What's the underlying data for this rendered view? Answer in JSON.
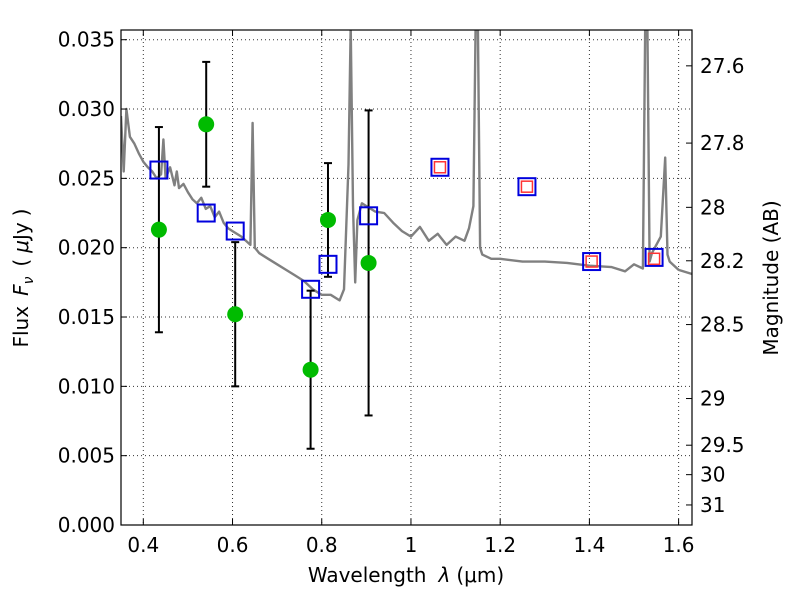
{
  "chart_data": {
    "type": "scatter",
    "title": "",
    "xlabel_text": "Wavelength",
    "xlabel_symbol": "λ",
    "xlabel_unit": "(μm)",
    "ylabel_text": "Flux",
    "ylabel_symbol": "F",
    "ylabel_subscript": "ν",
    "ylabel_open": "(",
    "ylabel_unit_symbol": "μ",
    "ylabel_unit": "Jy",
    "ylabel_close": ")",
    "y2label": "Magnitude (AB)",
    "xlim": [
      0.35,
      1.63
    ],
    "ylim": [
      0.0,
      0.0357
    ],
    "xticks": [
      0.4,
      0.6,
      0.8,
      1.0,
      1.2,
      1.4,
      1.6
    ],
    "xtick_labels": [
      "0.4",
      "0.6",
      "0.8",
      "1",
      "1.2",
      "1.4",
      "1.6"
    ],
    "yticks": [
      0.0,
      0.005,
      0.01,
      0.015,
      0.02,
      0.025,
      0.03,
      0.035
    ],
    "ytick_labels": [
      "0.000",
      "0.005",
      "0.010",
      "0.015",
      "0.020",
      "0.025",
      "0.030",
      "0.035"
    ],
    "y2ticks": [
      27.6,
      27.8,
      28,
      28.2,
      28.5,
      29,
      29.5,
      30,
      31
    ],
    "y2tick_labels": [
      "27.6",
      "27.8",
      "28",
      "28.2",
      "28.5",
      "29",
      "29.5",
      "30",
      "31"
    ],
    "grid": true,
    "colors": {
      "observed": "#00bb00",
      "model": "#0000dd",
      "predicted": "#ff3333",
      "spectrum": "#808080",
      "errorbar": "#000000"
    },
    "observed": [
      {
        "x": 0.435,
        "y": 0.0213,
        "yerr": 0.0074
      },
      {
        "x": 0.541,
        "y": 0.0289,
        "yerr": 0.0045
      },
      {
        "x": 0.606,
        "y": 0.0152,
        "yerr": 0.0052
      },
      {
        "x": 0.775,
        "y": 0.0112,
        "yerr": 0.0057
      },
      {
        "x": 0.814,
        "y": 0.022,
        "yerr": 0.0041
      },
      {
        "x": 0.905,
        "y": 0.0189,
        "yerr": 0.011
      }
    ],
    "model_photometry": [
      {
        "x": 0.435,
        "y": 0.0256
      },
      {
        "x": 0.541,
        "y": 0.0225
      },
      {
        "x": 0.606,
        "y": 0.0212
      },
      {
        "x": 0.775,
        "y": 0.017
      },
      {
        "x": 0.814,
        "y": 0.0188
      },
      {
        "x": 0.905,
        "y": 0.0223
      },
      {
        "x": 1.065,
        "y": 0.0258
      },
      {
        "x": 1.26,
        "y": 0.0244
      },
      {
        "x": 1.405,
        "y": 0.019
      },
      {
        "x": 1.545,
        "y": 0.0193
      }
    ],
    "predicted_photometry": [
      {
        "x": 1.065,
        "y": 0.0258
      },
      {
        "x": 1.26,
        "y": 0.0244
      },
      {
        "x": 1.405,
        "y": 0.019
      },
      {
        "x": 1.545,
        "y": 0.0192
      }
    ],
    "spectrum": {
      "x": [
        0.35,
        0.356,
        0.362,
        0.37,
        0.38,
        0.39,
        0.4,
        0.41,
        0.42,
        0.43,
        0.44,
        0.445,
        0.45,
        0.46,
        0.47,
        0.475,
        0.48,
        0.49,
        0.5,
        0.51,
        0.52,
        0.53,
        0.54,
        0.55,
        0.56,
        0.57,
        0.58,
        0.59,
        0.6,
        0.62,
        0.64,
        0.645,
        0.65,
        0.655,
        0.66,
        0.68,
        0.7,
        0.72,
        0.74,
        0.76,
        0.78,
        0.8,
        0.82,
        0.84,
        0.85,
        0.86,
        0.865,
        0.87,
        0.875,
        0.88,
        0.89,
        0.9,
        0.92,
        0.94,
        0.96,
        0.98,
        1.0,
        1.02,
        1.04,
        1.06,
        1.08,
        1.1,
        1.12,
        1.13,
        1.14,
        1.145,
        1.15,
        1.155,
        1.16,
        1.18,
        1.2,
        1.25,
        1.3,
        1.35,
        1.4,
        1.45,
        1.48,
        1.5,
        1.52,
        1.525,
        1.53,
        1.535,
        1.54,
        1.56,
        1.57,
        1.575,
        1.58,
        1.6,
        1.63
      ],
      "y": [
        0.0295,
        0.0255,
        0.03,
        0.028,
        0.0275,
        0.0268,
        0.0262,
        0.0258,
        0.0255,
        0.025,
        0.0253,
        0.0278,
        0.025,
        0.0258,
        0.0245,
        0.0255,
        0.0243,
        0.0246,
        0.024,
        0.0235,
        0.0232,
        0.0236,
        0.0228,
        0.023,
        0.0222,
        0.0226,
        0.0218,
        0.0214,
        0.0212,
        0.0208,
        0.0202,
        0.029,
        0.02,
        0.0198,
        0.0196,
        0.0192,
        0.0188,
        0.0184,
        0.018,
        0.0176,
        0.017,
        0.0166,
        0.0166,
        0.0162,
        0.017,
        0.026,
        0.036,
        0.023,
        0.0175,
        0.022,
        0.0232,
        0.023,
        0.0226,
        0.0225,
        0.0218,
        0.0212,
        0.0208,
        0.0215,
        0.0205,
        0.021,
        0.0202,
        0.0208,
        0.0205,
        0.0214,
        0.023,
        0.036,
        0.036,
        0.02,
        0.0195,
        0.0192,
        0.0192,
        0.019,
        0.019,
        0.0189,
        0.0187,
        0.0186,
        0.0183,
        0.0188,
        0.0185,
        0.036,
        0.036,
        0.019,
        0.0196,
        0.0208,
        0.0265,
        0.0195,
        0.019,
        0.0184,
        0.0181
      ]
    }
  }
}
